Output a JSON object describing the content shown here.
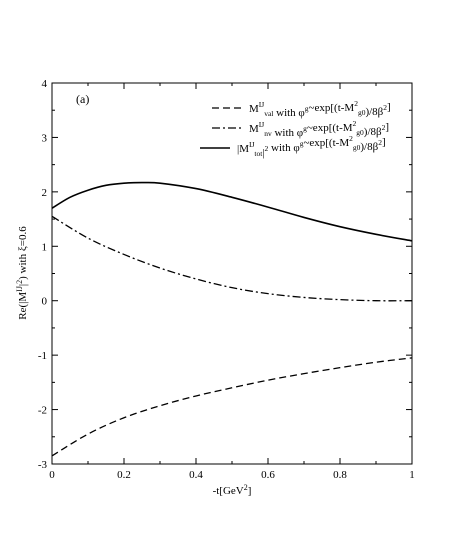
{
  "chart_data": {
    "type": "line",
    "panel_label": "(a)",
    "xlabel": {
      "main": "-t[GeV",
      "sup": "2",
      "tail": "]"
    },
    "ylabel": {
      "pre": "Re(|M",
      "sup": "IJ",
      "post": "|",
      "sup2": "2",
      "tail": ") with ξ=0.6"
    },
    "xlim": [
      0,
      1
    ],
    "ylim": [
      -3,
      4
    ],
    "x_ticks": [
      "0",
      "0.2",
      "0.4",
      "0.6",
      "0.8",
      "1"
    ],
    "y_ticks": [
      "-3",
      "-2",
      "-1",
      "0",
      "1",
      "2",
      "3",
      "4"
    ],
    "x_tick_values": [
      0,
      0.2,
      0.4,
      0.6,
      0.8,
      1
    ],
    "y_tick_values": [
      -3,
      -2,
      -1,
      0,
      1,
      2,
      3,
      4
    ],
    "legend_position": "top-right",
    "series": [
      {
        "key": "val",
        "style": "dashed",
        "legend": {
          "m": "M",
          "m_sup": "IJ",
          "m_sub": "val",
          "middle": " with φ",
          "phi_sup": "g",
          "rest": "~exp[(t-M",
          "rest_sup": "2",
          "rest_sub": "g0",
          "end": ")/8β",
          "end_sup": "2",
          "close": "]"
        },
        "x": [
          0,
          0.1,
          0.2,
          0.3,
          0.4,
          0.5,
          0.6,
          0.7,
          0.8,
          0.9,
          1.0
        ],
        "y": [
          -2.85,
          -2.45,
          -2.15,
          -1.93,
          -1.75,
          -1.6,
          -1.46,
          -1.34,
          -1.23,
          -1.13,
          -1.05
        ]
      },
      {
        "key": "nv",
        "style": "dashdot",
        "legend": {
          "m": "M",
          "m_sup": "IJ",
          "m_sub": "nv",
          "middle": " with φ",
          "phi_sup": "g",
          "rest": "~exp[(t-M",
          "rest_sup": "2",
          "rest_sub": "g0",
          "end": ")/8β",
          "end_sup": "2",
          "close": "]"
        },
        "x": [
          0,
          0.1,
          0.2,
          0.3,
          0.4,
          0.5,
          0.6,
          0.7,
          0.8,
          0.9,
          1.0
        ],
        "y": [
          1.55,
          1.15,
          0.85,
          0.6,
          0.4,
          0.24,
          0.13,
          0.06,
          0.02,
          0.0,
          0.0
        ]
      },
      {
        "key": "tot",
        "style": "solid",
        "legend": {
          "m": "|M",
          "m_sup": "IJ",
          "m_sub": "tot",
          "middle": "|",
          "phi_sup": "2",
          "rest": " with φ",
          "rest_sup": "g",
          "rest_sub": "",
          "end": "~exp[(t-M",
          "end_sup": "2",
          "end_sub": "g0",
          "close": ")/8β",
          "close_sup": "2",
          "final": "]"
        },
        "x": [
          0,
          0.05,
          0.1,
          0.15,
          0.2,
          0.25,
          0.3,
          0.4,
          0.5,
          0.6,
          0.7,
          0.8,
          0.9,
          1.0
        ],
        "y": [
          1.7,
          1.9,
          2.03,
          2.12,
          2.16,
          2.17,
          2.16,
          2.06,
          1.9,
          1.72,
          1.53,
          1.36,
          1.22,
          1.1
        ]
      }
    ]
  }
}
